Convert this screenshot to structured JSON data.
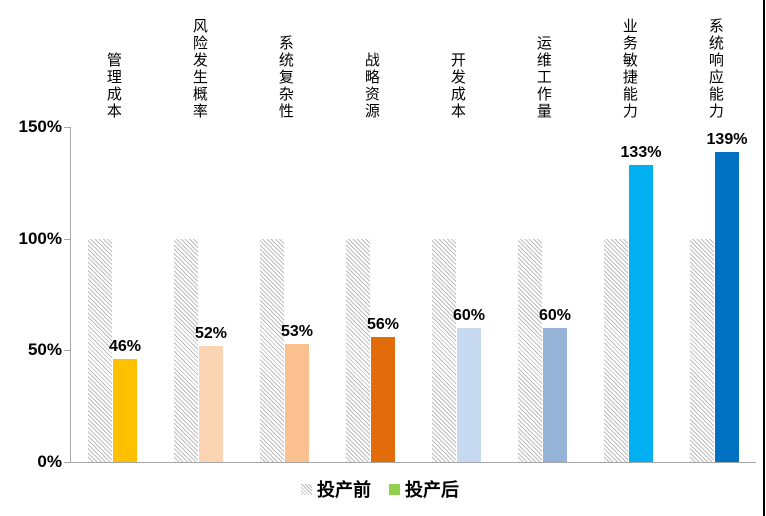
{
  "chart_data": {
    "type": "bar",
    "title": "",
    "categories": [
      "管理成本",
      "风险发生概率",
      "系统复杂性",
      "战略资源",
      "开发成本",
      "运维工作量",
      "业务敏捷能力",
      "系统响应能力"
    ],
    "series": [
      {
        "name": "投产前",
        "values": [
          100,
          100,
          100,
          100,
          100,
          100,
          100,
          100
        ],
        "style": "hatched-gray",
        "hatch_color": "#bdbdbd"
      },
      {
        "name": "投产后",
        "values": [
          46,
          52,
          53,
          56,
          60,
          60,
          133,
          139
        ],
        "colors": [
          "#FFC000",
          "#FBD4B4",
          "#FAC090",
          "#E36C0A",
          "#C6D9F1",
          "#95B3D7",
          "#00B0F0",
          "#0070C0"
        ]
      }
    ],
    "data_labels": [
      "46%",
      "52%",
      "53%",
      "56%",
      "60%",
      "60%",
      "133%",
      "139%"
    ],
    "xlabel": "",
    "ylabel": "",
    "ylim": [
      0,
      150
    ],
    "y_ticks": [
      {
        "label": "0%",
        "value": 0
      },
      {
        "label": "50%",
        "value": 50
      },
      {
        "label": "100%",
        "value": 100
      },
      {
        "label": "150%",
        "value": 150
      }
    ],
    "grid": false,
    "legend_position": "bottom",
    "legend": [
      {
        "label": "投产前",
        "swatch": "hatch-gray"
      },
      {
        "label": "投产后",
        "swatch": "#92D050"
      }
    ],
    "axis_color": "#a6a6a6",
    "label_orientation": "vertical-upright"
  }
}
